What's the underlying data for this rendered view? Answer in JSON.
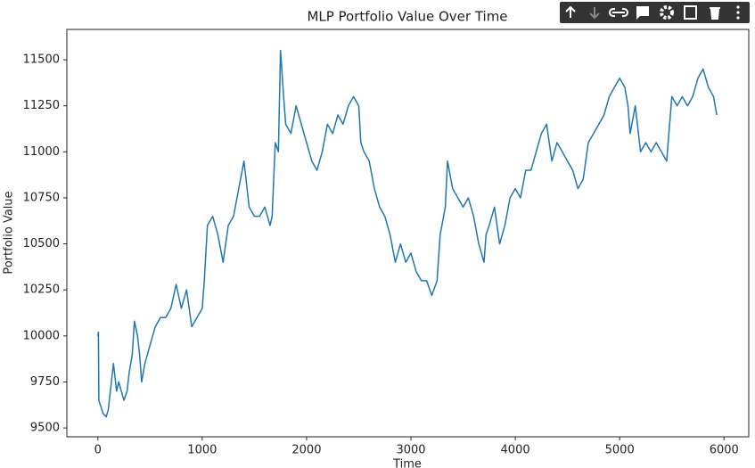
{
  "chart_data": {
    "type": "line",
    "title": "MLP Portfolio Value Over Time",
    "xlabel": "Time",
    "ylabel": "Portfolio Value",
    "color": "#1f77b4",
    "x": [
      0,
      5,
      10,
      50,
      80,
      100,
      120,
      150,
      180,
      200,
      250,
      280,
      300,
      330,
      350,
      380,
      400,
      420,
      450,
      500,
      550,
      600,
      650,
      700,
      750,
      800,
      850,
      900,
      950,
      1000,
      1020,
      1050,
      1100,
      1150,
      1200,
      1250,
      1300,
      1350,
      1400,
      1450,
      1500,
      1550,
      1600,
      1650,
      1670,
      1700,
      1730,
      1750,
      1780,
      1800,
      1850,
      1900,
      1950,
      2000,
      2050,
      2100,
      2150,
      2200,
      2250,
      2300,
      2350,
      2400,
      2450,
      2500,
      2520,
      2550,
      2600,
      2650,
      2700,
      2750,
      2800,
      2850,
      2900,
      2950,
      3000,
      3050,
      3100,
      3150,
      3200,
      3250,
      3280,
      3330,
      3350,
      3400,
      3450,
      3500,
      3550,
      3600,
      3650,
      3700,
      3720,
      3750,
      3800,
      3850,
      3900,
      3950,
      4000,
      4050,
      4100,
      4150,
      4200,
      4250,
      4300,
      4350,
      4400,
      4450,
      4500,
      4550,
      4600,
      4650,
      4700,
      4750,
      4800,
      4850,
      4900,
      4950,
      5000,
      5050,
      5080,
      5100,
      5150,
      5200,
      5250,
      5300,
      5350,
      5400,
      5450,
      5500,
      5550,
      5600,
      5650,
      5700,
      5750,
      5800,
      5850,
      5900,
      5930
    ],
    "values": [
      10000,
      10020,
      9650,
      9580,
      9560,
      9600,
      9700,
      9850,
      9700,
      9750,
      9650,
      9700,
      9800,
      9900,
      10080,
      10000,
      9900,
      9750,
      9850,
      9950,
      10050,
      10100,
      10100,
      10150,
      10280,
      10150,
      10250,
      10050,
      10100,
      10150,
      10300,
      10600,
      10650,
      10550,
      10400,
      10600,
      10650,
      10800,
      10950,
      10700,
      10650,
      10650,
      10700,
      10600,
      10650,
      11050,
      11000,
      11550,
      11300,
      11150,
      11100,
      11250,
      11150,
      11050,
      10950,
      10900,
      11000,
      11150,
      11100,
      11200,
      11150,
      11250,
      11300,
      11250,
      11050,
      11000,
      10950,
      10800,
      10700,
      10650,
      10550,
      10400,
      10500,
      10400,
      10450,
      10350,
      10300,
      10300,
      10220,
      10300,
      10550,
      10700,
      10950,
      10800,
      10750,
      10700,
      10750,
      10650,
      10500,
      10400,
      10550,
      10600,
      10700,
      10500,
      10600,
      10750,
      10800,
      10750,
      10900,
      10900,
      11000,
      11100,
      11150,
      10950,
      11050,
      11000,
      10950,
      10900,
      10800,
      10850,
      11050,
      11100,
      11150,
      11200,
      11300,
      11350,
      11400,
      11350,
      11250,
      11100,
      11250,
      11000,
      11050,
      11000,
      11050,
      11000,
      10950,
      11300,
      11250,
      11300,
      11250,
      11300,
      11400,
      11450,
      11350,
      11300,
      11200
    ],
    "xlim": [
      -297,
      6237
    ],
    "ylim": [
      9452,
      11665
    ],
    "xticks": [
      0,
      1000,
      2000,
      3000,
      4000,
      5000,
      6000
    ],
    "yticks": [
      9500,
      9750,
      10000,
      10250,
      10500,
      10750,
      11000,
      11250,
      11500
    ]
  }
}
